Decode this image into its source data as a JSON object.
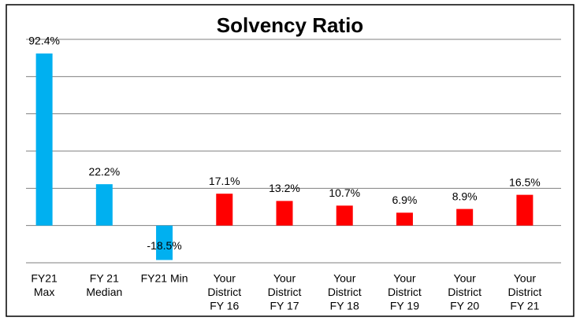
{
  "chart_data": {
    "type": "bar",
    "title": "Solvency Ratio",
    "categories": [
      [
        "FY21",
        "Max"
      ],
      [
        "FY 21",
        "Median"
      ],
      [
        "FY21 Min"
      ],
      [
        "Your",
        "District",
        "FY 16"
      ],
      [
        "Your",
        "District",
        "FY 17"
      ],
      [
        "Your",
        "District",
        "FY 18"
      ],
      [
        "Your",
        "District",
        "FY 19"
      ],
      [
        "Your",
        "District",
        "FY 20"
      ],
      [
        "Your",
        "District",
        "FY 21"
      ]
    ],
    "values": [
      92.4,
      22.2,
      -18.5,
      17.1,
      13.2,
      10.7,
      6.9,
      8.9,
      16.5
    ],
    "value_labels": [
      "92.4%",
      "22.2%",
      "-18.5%",
      "17.1%",
      "13.2%",
      "10.7%",
      "6.9%",
      "8.9%",
      "16.5%"
    ],
    "colors": [
      "#00b0f0",
      "#00b0f0",
      "#00b0f0",
      "#ff0000",
      "#ff0000",
      "#ff0000",
      "#ff0000",
      "#ff0000",
      "#ff0000"
    ],
    "ylim": [
      -20,
      100
    ],
    "yticks": [
      -20,
      0,
      20,
      40,
      60,
      80,
      100
    ],
    "grid": true
  }
}
